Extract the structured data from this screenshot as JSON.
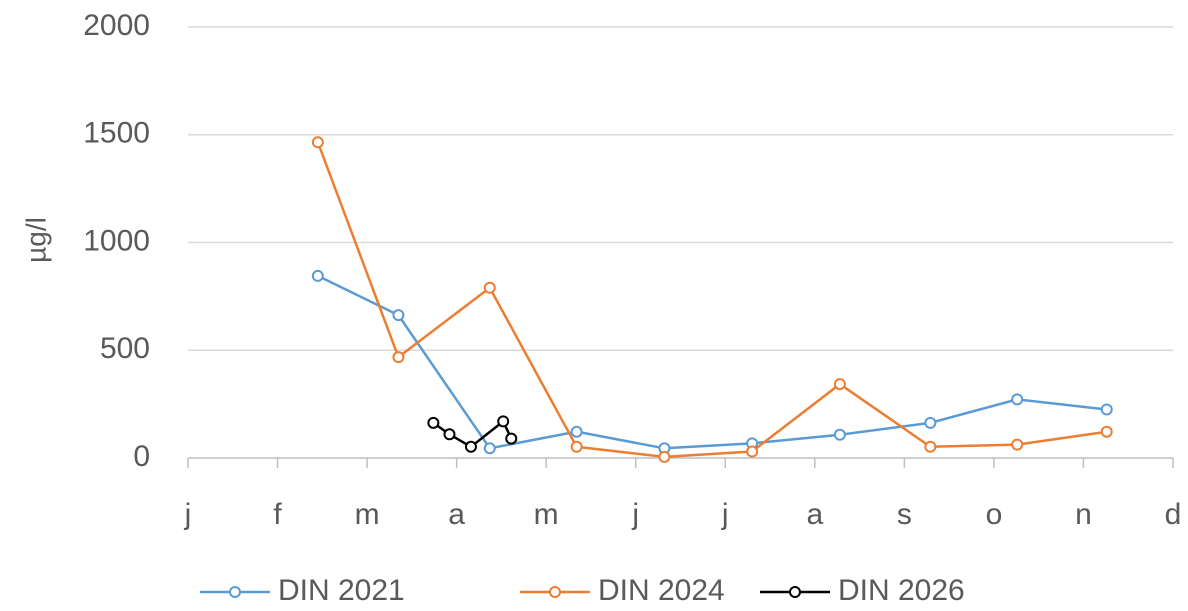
{
  "chart_data": {
    "type": "line",
    "y_label": "µg/l",
    "xlim": [
      0,
      11
    ],
    "xticks": [
      {
        "value": 0,
        "label": "j"
      },
      {
        "value": 1,
        "label": "f"
      },
      {
        "value": 2,
        "label": "m"
      },
      {
        "value": 3,
        "label": "a"
      },
      {
        "value": 4,
        "label": "m"
      },
      {
        "value": 5,
        "label": "j"
      },
      {
        "value": 6,
        "label": "j"
      },
      {
        "value": 7,
        "label": "a"
      },
      {
        "value": 8,
        "label": "s"
      },
      {
        "value": 9,
        "label": "o"
      },
      {
        "value": 10,
        "label": "n"
      },
      {
        "value": 11,
        "label": "d"
      }
    ],
    "ylim": [
      0,
      2000
    ],
    "yticks": [
      0,
      500,
      1000,
      1500,
      2000
    ],
    "grid": true,
    "legend": "bottom",
    "series": [
      {
        "name": "DIN 2021",
        "color": "#5b9bd5",
        "x": [
          1.45,
          2.35,
          3.37,
          4.34,
          5.32,
          6.3,
          7.28,
          8.29,
          9.26,
          10.26
        ],
        "values": [
          845,
          663,
          45,
          122,
          45,
          68,
          108,
          163,
          272,
          225
        ]
      },
      {
        "name": "DIN 2024",
        "color": "#ed7d31",
        "x": [
          1.45,
          2.35,
          3.37,
          4.34,
          5.32,
          6.3,
          7.28,
          8.29,
          9.26,
          10.26
        ],
        "values": [
          1465,
          468,
          790,
          52,
          5,
          30,
          343,
          52,
          62,
          122
        ]
      },
      {
        "name": "DIN 2026",
        "color": "#000000",
        "x": [
          2.74,
          2.92,
          3.16,
          3.52,
          3.61
        ],
        "values": [
          163,
          110,
          52,
          170,
          90
        ]
      }
    ]
  }
}
